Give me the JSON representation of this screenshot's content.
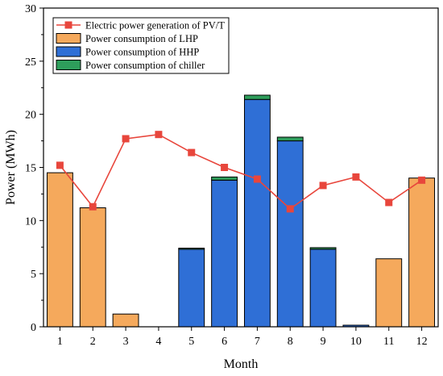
{
  "chart_data": {
    "type": "bar",
    "xlabel": "Month",
    "ylabel": "Power (MWh)",
    "categories": [
      "1",
      "2",
      "3",
      "4",
      "5",
      "6",
      "7",
      "8",
      "9",
      "10",
      "11",
      "12"
    ],
    "ylim": [
      0,
      30
    ],
    "yticks": [
      0,
      5,
      10,
      15,
      20,
      25,
      30
    ],
    "grid": false,
    "legend_position": "top-left",
    "stacked_series": [
      {
        "name": "Power consumption of LHP",
        "color": "#F5A95C",
        "values": [
          14.5,
          11.2,
          1.2,
          0.0,
          0.0,
          0.0,
          0.0,
          0.0,
          0.0,
          0.0,
          6.4,
          14.0
        ]
      },
      {
        "name": "Power consumption of HHP",
        "color": "#2F6FD6",
        "values": [
          0.0,
          0.0,
          0.0,
          0.0,
          7.3,
          13.8,
          21.4,
          17.5,
          7.3,
          0.15,
          0.0,
          0.0
        ]
      },
      {
        "name": "Power consumption of chiller",
        "color": "#2E9E5B",
        "values": [
          0.0,
          0.0,
          0.0,
          0.0,
          0.1,
          0.3,
          0.4,
          0.35,
          0.15,
          0.0,
          0.0,
          0.0
        ]
      }
    ],
    "line_series": {
      "name": "Electric power generation of PV/T",
      "color": "#E8463C",
      "values": [
        15.2,
        11.3,
        17.7,
        18.1,
        16.4,
        15.0,
        13.9,
        11.1,
        13.3,
        14.1,
        11.7,
        13.8
      ]
    }
  }
}
